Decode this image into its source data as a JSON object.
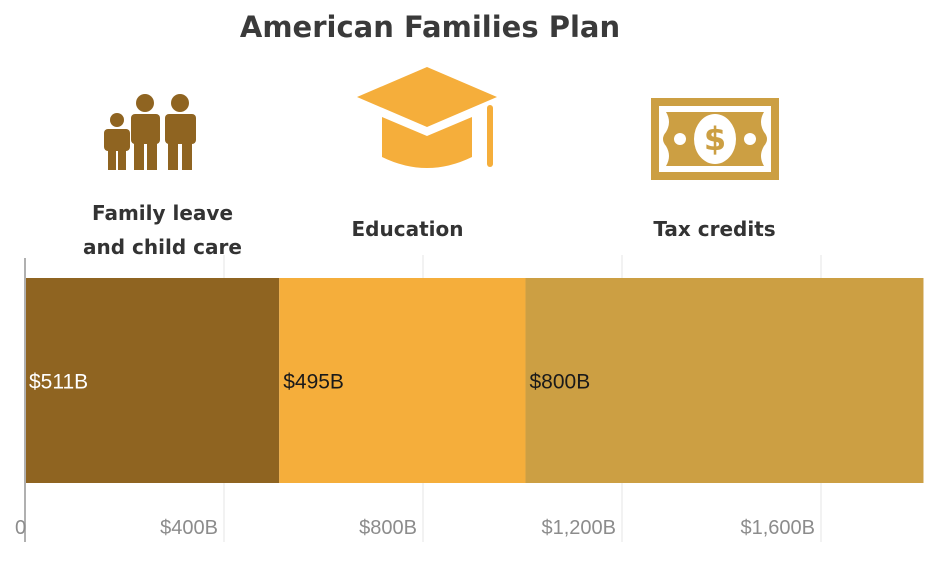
{
  "colors": {
    "family": "#8f6421",
    "education": "#f5ae3b",
    "tax": "#cc9f43",
    "grid": "#e6e6e6",
    "axis": "#b0b0b0",
    "tick_text": "#8c8c8c",
    "title_text": "#3a3a3a"
  },
  "icons": {
    "family": "family-icon",
    "education": "graduation-cap-icon",
    "tax": "dollar-bill-icon"
  },
  "chart_data": {
    "type": "bar",
    "orientation": "horizontal-stacked",
    "title": "American Families Plan",
    "categories": [
      "Family leave and child care",
      "Education",
      "Tax credits"
    ],
    "series": [
      {
        "name": "Family leave and child care",
        "value": 511,
        "label": "$511B",
        "color": "#8f6421"
      },
      {
        "name": "Education",
        "value": 495,
        "label": "$495B",
        "color": "#f5ae3b"
      },
      {
        "name": "Tax credits",
        "value": 800,
        "label": "$800B",
        "color": "#cc9f43"
      }
    ],
    "xlim": [
      0,
      1806
    ],
    "x_ticks": [
      0,
      400,
      800,
      1200,
      1600
    ],
    "x_tick_labels": [
      "0",
      "$400B",
      "$800B",
      "$1,200B",
      "$1,600B"
    ],
    "grid": true,
    "legend": "none"
  }
}
